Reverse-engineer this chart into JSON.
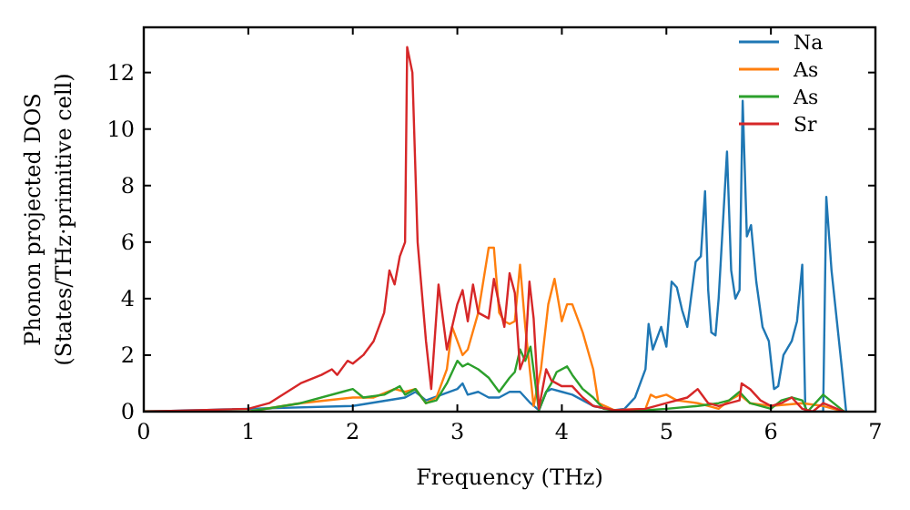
{
  "chart_data": {
    "type": "line",
    "xlabel": "Frequency (THz)",
    "ylabel": "Phonon projected DOS\n(States/THz·primitive cell)",
    "xlim": [
      0,
      7
    ],
    "ylim": [
      0,
      13.6
    ],
    "xticks": [
      0,
      1,
      2,
      3,
      4,
      5,
      6,
      7
    ],
    "yticks": [
      0,
      2,
      4,
      6,
      8,
      10,
      12
    ],
    "legend": "top right",
    "grid": false,
    "series": [
      {
        "name": "Na",
        "color": "#1f77b4",
        "x": [
          0,
          2,
          2.5,
          2.6,
          2.7,
          3.0,
          3.05,
          3.1,
          3.2,
          3.3,
          3.4,
          3.5,
          3.6,
          3.7,
          3.78,
          3.85,
          3.9,
          4.0,
          4.1,
          4.3,
          4.5,
          4.6,
          4.7,
          4.8,
          4.83,
          4.87,
          4.95,
          5.0,
          5.05,
          5.1,
          5.15,
          5.2,
          5.28,
          5.33,
          5.37,
          5.4,
          5.43,
          5.47,
          5.5,
          5.58,
          5.62,
          5.66,
          5.7,
          5.73,
          5.77,
          5.81,
          5.86,
          5.92,
          5.98,
          6.03,
          6.07,
          6.12,
          6.2,
          6.25,
          6.3,
          6.33,
          6.5,
          6.53,
          6.58,
          6.68,
          6.72
        ],
        "values": [
          0,
          0.2,
          0.5,
          0.7,
          0.4,
          0.8,
          1.0,
          0.6,
          0.7,
          0.5,
          0.5,
          0.7,
          0.7,
          0.3,
          0.05,
          0.7,
          0.8,
          0.7,
          0.6,
          0.2,
          0.05,
          0.1,
          0.5,
          1.5,
          3.1,
          2.2,
          3.0,
          2.3,
          4.6,
          4.4,
          3.6,
          3.0,
          5.3,
          5.5,
          7.8,
          4.3,
          2.8,
          2.7,
          4.0,
          9.2,
          5.0,
          4.0,
          4.3,
          11.0,
          6.2,
          6.6,
          4.6,
          3.0,
          2.5,
          0.8,
          0.9,
          2.0,
          2.5,
          3.2,
          5.2,
          0,
          0,
          7.6,
          5.0,
          1.5,
          0
        ]
      },
      {
        "name": "As",
        "color": "#ff7f0e",
        "x": [
          0,
          1,
          1.5,
          2,
          2.2,
          2.4,
          2.5,
          2.6,
          2.7,
          2.8,
          2.9,
          2.95,
          3.0,
          3.05,
          3.1,
          3.2,
          3.3,
          3.35,
          3.4,
          3.45,
          3.5,
          3.55,
          3.6,
          3.65,
          3.73,
          3.8,
          3.87,
          3.93,
          4.0,
          4.05,
          4.1,
          4.2,
          4.3,
          4.35,
          4.5,
          4.8,
          4.85,
          4.9,
          5.0,
          5.1,
          5.3,
          5.5,
          5.6,
          5.7,
          5.8,
          6.0,
          6.3,
          6.5,
          6.7
        ],
        "values": [
          0,
          0,
          0.3,
          0.5,
          0.5,
          0.8,
          0.7,
          0.8,
          0.3,
          0.5,
          1.5,
          3.0,
          2.5,
          2.0,
          2.2,
          3.5,
          5.8,
          5.8,
          3.5,
          3.2,
          3.1,
          3.2,
          5.2,
          3.0,
          0.2,
          1.5,
          3.8,
          4.7,
          3.2,
          3.8,
          3.8,
          2.8,
          1.5,
          0.3,
          0.05,
          0.1,
          0.6,
          0.5,
          0.6,
          0.4,
          0.3,
          0.1,
          0.4,
          0.6,
          0.3,
          0.2,
          0.3,
          0.2,
          0
        ]
      },
      {
        "name": "As",
        "color": "#2ca02c",
        "x": [
          0,
          1,
          1.5,
          1.9,
          2.0,
          2.1,
          2.3,
          2.45,
          2.5,
          2.6,
          2.7,
          2.8,
          2.9,
          3.0,
          3.05,
          3.1,
          3.2,
          3.3,
          3.4,
          3.5,
          3.55,
          3.6,
          3.65,
          3.7,
          3.78,
          3.85,
          3.9,
          3.95,
          4.05,
          4.1,
          4.2,
          4.3,
          4.4,
          4.6,
          5.0,
          5.3,
          5.5,
          5.6,
          5.7,
          5.8,
          6.0,
          6.1,
          6.2,
          6.3,
          6.35,
          6.5,
          6.6,
          6.7
        ],
        "values": [
          0,
          0,
          0.3,
          0.7,
          0.8,
          0.5,
          0.6,
          0.9,
          0.6,
          0.8,
          0.3,
          0.4,
          1.0,
          1.8,
          1.6,
          1.7,
          1.5,
          1.2,
          0.7,
          1.2,
          1.4,
          2.2,
          1.8,
          2.3,
          0.05,
          0.7,
          1.0,
          1.4,
          1.6,
          1.3,
          0.8,
          0.5,
          0.1,
          0,
          0.1,
          0.2,
          0.3,
          0.4,
          0.7,
          0.3,
          0.1,
          0.4,
          0.5,
          0.4,
          0,
          0.6,
          0.3,
          0
        ]
      },
      {
        "name": "Sr",
        "color": "#d62728",
        "x": [
          0,
          1,
          1.2,
          1.5,
          1.7,
          1.8,
          1.85,
          1.95,
          2.0,
          2.1,
          2.2,
          2.3,
          2.35,
          2.4,
          2.45,
          2.5,
          2.52,
          2.57,
          2.62,
          2.7,
          2.75,
          2.82,
          2.9,
          3.0,
          3.05,
          3.1,
          3.15,
          3.2,
          3.3,
          3.35,
          3.4,
          3.45,
          3.5,
          3.55,
          3.6,
          3.65,
          3.69,
          3.73,
          3.78,
          3.85,
          3.9,
          4.0,
          4.1,
          4.2,
          4.3,
          4.5,
          4.8,
          5.0,
          5.2,
          5.3,
          5.4,
          5.5,
          5.6,
          5.7,
          5.72,
          5.8,
          5.9,
          6.0,
          6.1,
          6.2,
          6.3,
          6.4,
          6.5,
          6.7
        ],
        "values": [
          0,
          0.1,
          0.3,
          1.0,
          1.3,
          1.5,
          1.3,
          1.8,
          1.7,
          2.0,
          2.5,
          3.5,
          5.0,
          4.5,
          5.5,
          6.0,
          12.9,
          12.0,
          6.0,
          2.5,
          0.8,
          4.5,
          2.2,
          3.8,
          4.3,
          3.2,
          4.5,
          3.5,
          3.3,
          4.7,
          3.8,
          3.0,
          4.9,
          4.2,
          1.5,
          2.0,
          4.6,
          3.3,
          0.1,
          1.5,
          1.1,
          0.9,
          0.9,
          0.5,
          0.2,
          0.05,
          0.1,
          0.3,
          0.5,
          0.8,
          0.3,
          0.2,
          0.3,
          0.4,
          1.0,
          0.8,
          0.4,
          0.2,
          0.3,
          0.5,
          0.1,
          0,
          0.3,
          0
        ]
      }
    ]
  }
}
